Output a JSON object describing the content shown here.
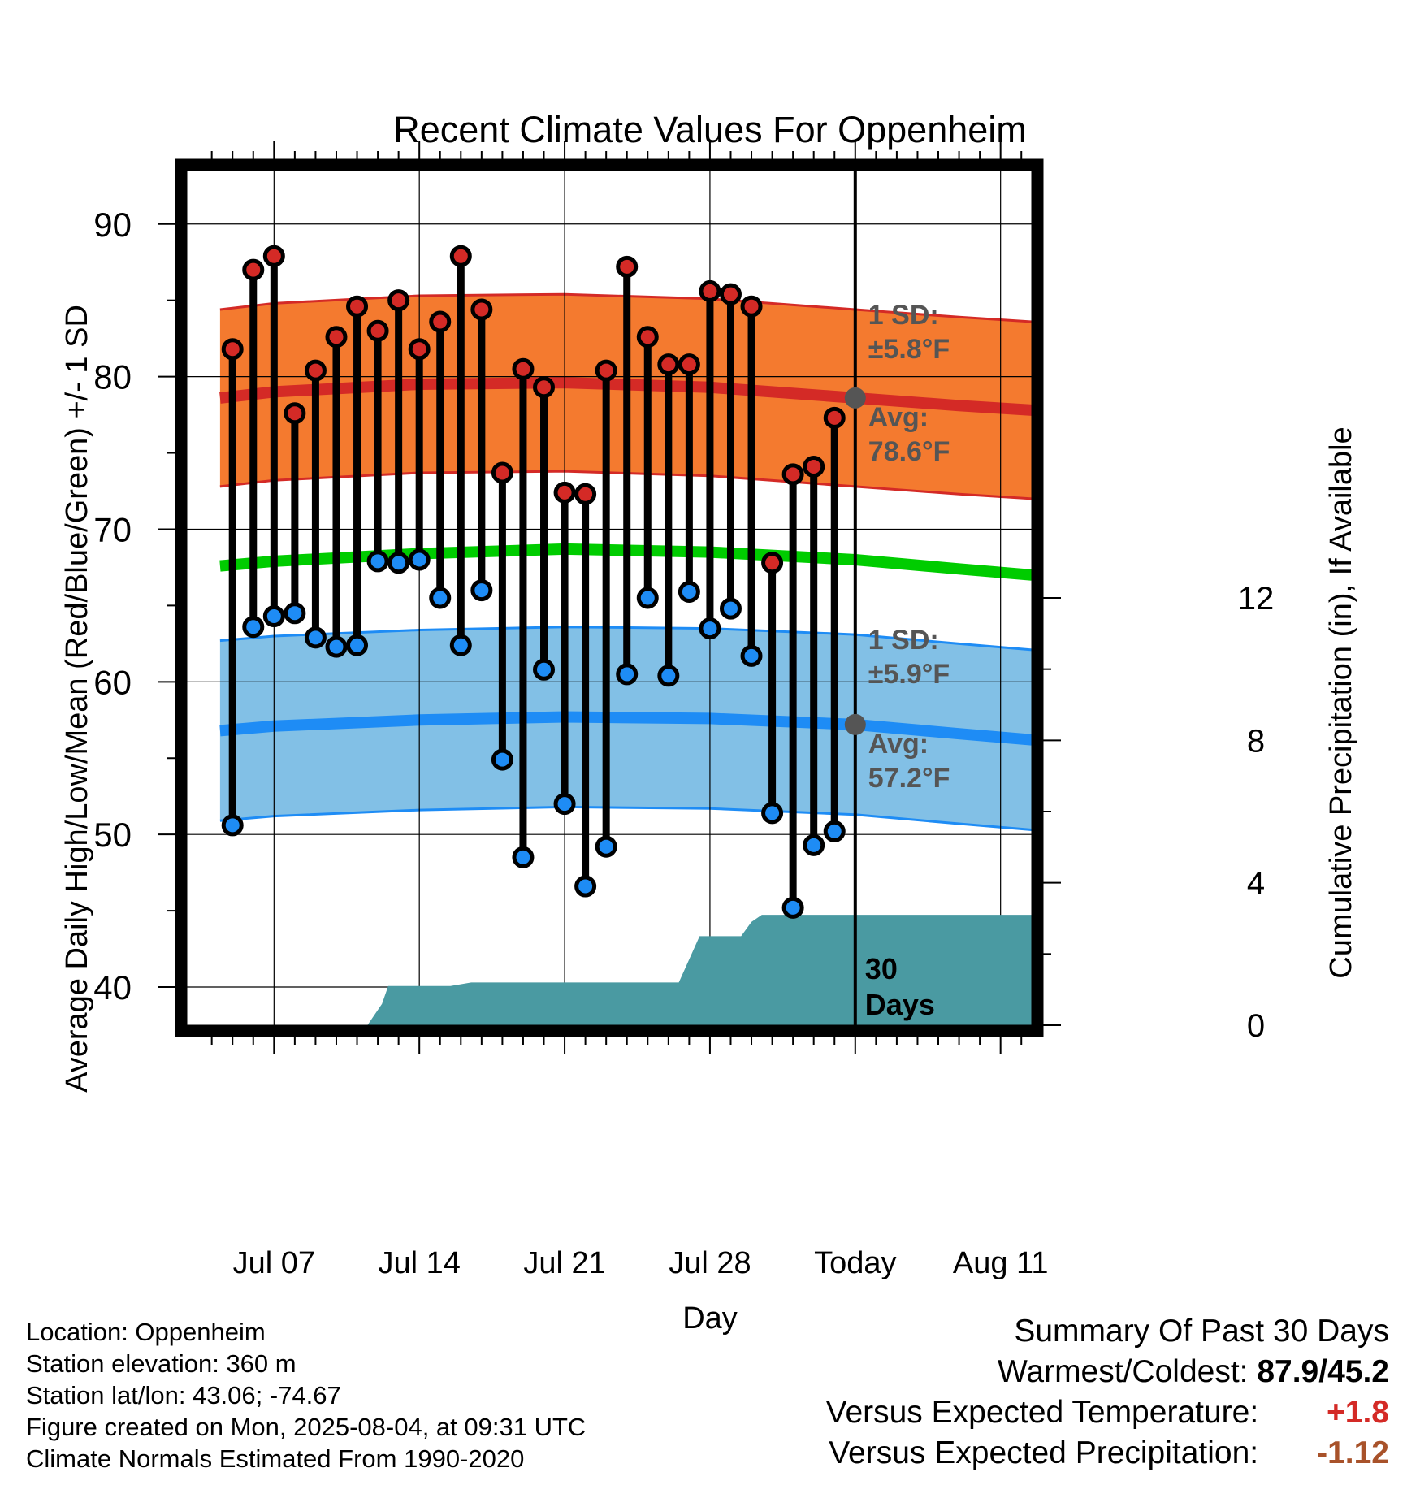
{
  "chart_data": {
    "type": "line",
    "title": "Recent Climate Values For Oppenheim",
    "xlabel": "Day",
    "ylabel": "Average Daily High/Low/Mean (Red/Blue/Green) +/- 1 SD",
    "y2label": "Cumulative Precipitation (in), If Available",
    "ylim": [
      37.5,
      93.5
    ],
    "y_ticks": [
      40,
      50,
      60,
      70,
      80,
      90
    ],
    "y2lim": [
      0,
      24
    ],
    "y2_ticks": [
      0,
      4,
      8,
      12
    ],
    "x_range_days": [
      -4.2,
      36.5
    ],
    "x_ticks": [
      {
        "label": "Jul 07",
        "day": 0
      },
      {
        "label": "Jul 14",
        "day": 7
      },
      {
        "label": "Jul 21",
        "day": 14
      },
      {
        "label": "Jul 28",
        "day": 21
      },
      {
        "label": "Today",
        "day": 28
      },
      {
        "label": "Aug 11",
        "day": 35
      }
    ],
    "today_day": 28,
    "days_label": "30\nDays",
    "high_avg": [
      [
        -2.6,
        78.6
      ],
      [
        0,
        79.0
      ],
      [
        7,
        79.5
      ],
      [
        14,
        79.6
      ],
      [
        21,
        79.3
      ],
      [
        28,
        78.6
      ],
      [
        33,
        78.1
      ],
      [
        36.5,
        77.8
      ]
    ],
    "high_sd": 5.8,
    "low_avg": [
      [
        -2.6,
        56.8
      ],
      [
        0,
        57.1
      ],
      [
        7,
        57.5
      ],
      [
        14,
        57.7
      ],
      [
        21,
        57.6
      ],
      [
        28,
        57.2
      ],
      [
        33,
        56.6
      ],
      [
        36.5,
        56.2
      ]
    ],
    "low_sd": 5.9,
    "mean_avg": [
      [
        -2.6,
        67.6
      ],
      [
        0,
        67.9
      ],
      [
        7,
        68.4
      ],
      [
        14,
        68.7
      ],
      [
        21,
        68.5
      ],
      [
        28,
        68.0
      ],
      [
        33,
        67.4
      ],
      [
        36.5,
        67.0
      ]
    ],
    "high_annotation": {
      "sd_label": "1 SD:",
      "sd_value": "±5.8°F",
      "avg_label": "Avg:",
      "avg_value": "78.6°F",
      "avg": 78.6
    },
    "low_annotation": {
      "sd_label": "1 SD:",
      "sd_value": "±5.9°F",
      "avg_label": "Avg:",
      "avg_value": "57.2°F",
      "avg": 57.2
    },
    "daily": [
      {
        "day": -2,
        "high": 81.8,
        "low": 50.6
      },
      {
        "day": -1,
        "high": 87.0,
        "low": 63.6
      },
      {
        "day": 0,
        "high": 87.9,
        "low": 64.3
      },
      {
        "day": 1,
        "high": 77.6,
        "low": 64.5
      },
      {
        "day": 2,
        "high": 80.4,
        "low": 62.9
      },
      {
        "day": 3,
        "high": 82.6,
        "low": 62.3
      },
      {
        "day": 4,
        "high": 84.6,
        "low": 62.4
      },
      {
        "day": 5,
        "high": 83.0,
        "low": 67.9
      },
      {
        "day": 6,
        "high": 85.0,
        "low": 67.8
      },
      {
        "day": 7,
        "high": 81.8,
        "low": 68.0
      },
      {
        "day": 8,
        "high": 83.6,
        "low": 65.5
      },
      {
        "day": 9,
        "high": 87.9,
        "low": 62.4
      },
      {
        "day": 10,
        "high": 84.4,
        "low": 66.0
      },
      {
        "day": 11,
        "high": 73.7,
        "low": 54.9
      },
      {
        "day": 12,
        "high": 80.5,
        "low": 48.5
      },
      {
        "day": 13,
        "high": 79.3,
        "low": 60.8
      },
      {
        "day": 14,
        "high": 72.4,
        "low": 52.0
      },
      {
        "day": 15,
        "high": 72.3,
        "low": 46.6
      },
      {
        "day": 16,
        "high": 80.4,
        "low": 49.2
      },
      {
        "day": 17,
        "high": 87.2,
        "low": 60.5
      },
      {
        "day": 18,
        "high": 82.6,
        "low": 65.5
      },
      {
        "day": 19,
        "high": 80.8,
        "low": 60.4
      },
      {
        "day": 20,
        "high": 80.8,
        "low": 65.9
      },
      {
        "day": 21,
        "high": 85.6,
        "low": 63.5
      },
      {
        "day": 22,
        "high": 85.4,
        "low": 64.8
      },
      {
        "day": 23,
        "high": 84.6,
        "low": 61.7
      },
      {
        "day": 24,
        "high": 67.8,
        "low": 51.4
      },
      {
        "day": 25,
        "high": 73.6,
        "low": 45.2
      },
      {
        "day": 26,
        "high": 74.1,
        "low": 49.3
      },
      {
        "day": 27,
        "high": 77.3,
        "low": 50.2
      }
    ],
    "precipitation_cumulative": [
      [
        -4.2,
        0
      ],
      [
        4.5,
        0
      ],
      [
        5.2,
        0.6
      ],
      [
        5.5,
        1.1
      ],
      [
        8.5,
        1.1
      ],
      [
        9.5,
        1.2
      ],
      [
        19.5,
        1.2
      ],
      [
        20.5,
        2.5
      ],
      [
        22.5,
        2.5
      ],
      [
        23.0,
        2.9
      ],
      [
        23.5,
        3.1
      ],
      [
        36.5,
        3.1
      ]
    ],
    "colors": {
      "high_band": "#f47a2f",
      "high_line": "#d42a26",
      "low_band": "#82c0e6",
      "low_line": "#1e8cf5",
      "mean_line": "#00cc00",
      "precip": "#4a9aa2",
      "high_dot": "#d42a26",
      "low_dot": "#1e8cf5",
      "annotation_text": "#555555",
      "today_marker": "#555555"
    }
  },
  "info": {
    "location": "Location: Oppenheim",
    "elevation": "Station elevation: 360 m",
    "latlon": "Station lat/lon: 43.06; -74.67",
    "created": "Figure created on Mon, 2025-08-04, at 09:31 UTC",
    "normals": "Climate Normals Estimated From 1990-2020"
  },
  "summary": {
    "title": "Summary Of Past 30 Days",
    "warmest_label": "Warmest/Coldest:",
    "warmest_value": "87.9/45.2",
    "temp_label": "Versus Expected Temperature:",
    "temp_value": "+1.8",
    "temp_color": "#d42a26",
    "precip_label": "Versus Expected Precipitation:",
    "precip_value": "-1.12",
    "precip_color": "#a8522a"
  }
}
